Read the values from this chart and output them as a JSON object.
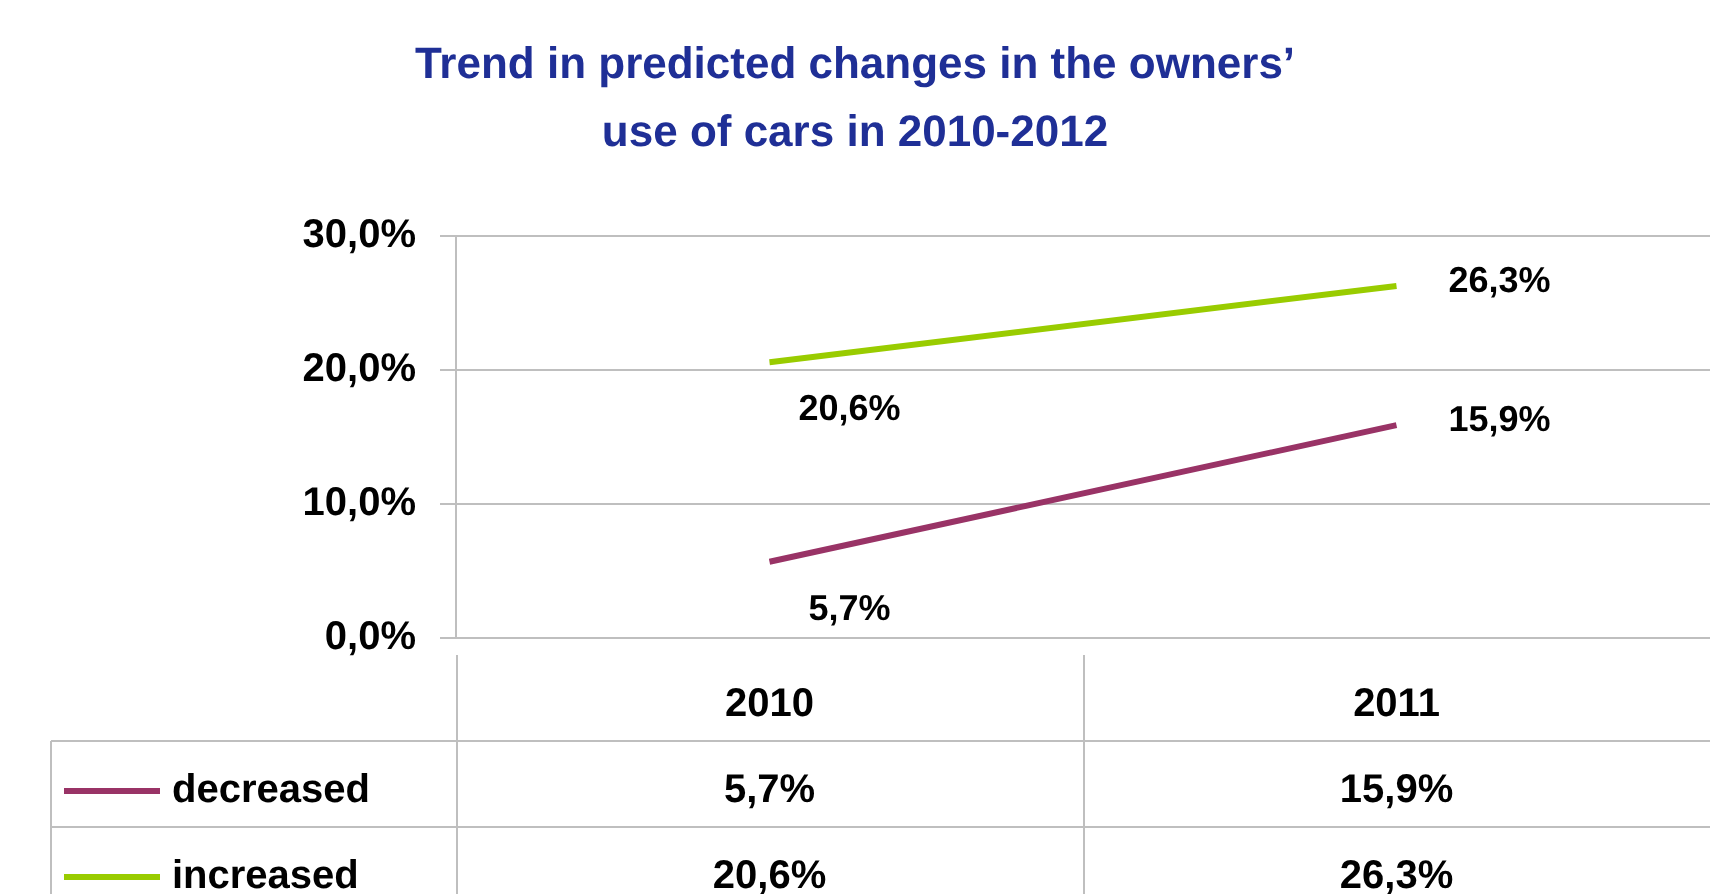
{
  "chart_data": {
    "type": "line",
    "title": "Trend in predicted changes in the owners’\nuse of cars in 2010-2012",
    "categories": [
      "2010",
      "2011"
    ],
    "series": [
      {
        "name": "decreased",
        "color": "#993366",
        "values": [
          5.7,
          15.9
        ],
        "value_labels": [
          "5,7%",
          "15,9%"
        ]
      },
      {
        "name": "increased",
        "color": "#99cc00",
        "values": [
          20.6,
          26.3
        ],
        "value_labels": [
          "20,6%",
          "26,3%"
        ]
      }
    ],
    "ylim": [
      0,
      30
    ],
    "yticks": [
      {
        "value": 0,
        "label": "0,0%"
      },
      {
        "value": 10,
        "label": "10,0%"
      },
      {
        "value": 20,
        "label": "20,0%"
      },
      {
        "value": 30,
        "label": "30,0%"
      }
    ],
    "grid": "y",
    "marker": "none",
    "legend": "bottom left"
  }
}
